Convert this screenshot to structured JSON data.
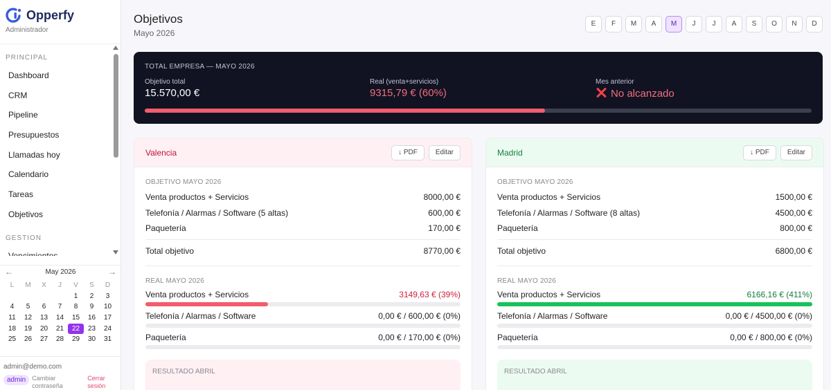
{
  "brand": {
    "name": "Opperfy",
    "role": "Administrador"
  },
  "nav": {
    "sections": [
      {
        "title": "PRINCIPAL",
        "items": [
          "Dashboard",
          "CRM",
          "Pipeline",
          "Presupuestos",
          "Llamadas hoy",
          "Calendario",
          "Tareas",
          "Objetivos"
        ]
      },
      {
        "title": "GESTION",
        "items": [
          "Vencimientos"
        ]
      }
    ]
  },
  "calendar": {
    "month": "May 2026",
    "prev": "←",
    "next": "→",
    "dow": [
      "L",
      "M",
      "X",
      "J",
      "V",
      "S",
      "D"
    ],
    "today": "22",
    "weeks": [
      [
        "",
        "",
        "",
        "",
        "1",
        "2",
        "3"
      ],
      [
        "4",
        "5",
        "6",
        "7",
        "8",
        "9",
        "10"
      ],
      [
        "11",
        "12",
        "13",
        "14",
        "15",
        "16",
        "17"
      ],
      [
        "18",
        "19",
        "20",
        "21",
        "22",
        "23",
        "24"
      ],
      [
        "25",
        "26",
        "27",
        "28",
        "29",
        "30",
        "31"
      ]
    ]
  },
  "user": {
    "email": "admin@demo.com",
    "badge": "admin",
    "change_password": "Cambiar contraseña",
    "logout": "Cerrar sesión"
  },
  "header": {
    "title": "Objetivos",
    "subtitle": "Mayo 2026"
  },
  "months": [
    "E",
    "F",
    "M",
    "A",
    "M",
    "J",
    "J",
    "A",
    "S",
    "O",
    "N",
    "D"
  ],
  "active_month_index": 4,
  "company": {
    "title": "TOTAL EMPRESA — MAYO 2026",
    "objective_label": "Objetivo total",
    "objective_value": "15.570,00 €",
    "real_label": "Real (venta+servicios)",
    "real_value": "9315,79 € (60%)",
    "prev_label": "Mes anterior",
    "prev_value": "No alcanzado",
    "progress": 0.6
  },
  "buttons": {
    "pdf": "↓ PDF",
    "edit": "Editar"
  },
  "cards": [
    {
      "name": "Valencia",
      "objective_title": "OBJETIVO MAYO 2026",
      "objectives": [
        {
          "label": "Venta productos + Servicios",
          "value": "8000,00 €"
        },
        {
          "label": "Telefonía / Alarmas / Software (5 altas)",
          "value": "600,00 €"
        },
        {
          "label": "Paquetería",
          "value": "170,00 €"
        }
      ],
      "total_label": "Total objetivo",
      "total_value": "8770,00 €",
      "real_title": "REAL MAYO 2026",
      "real": [
        {
          "label": "Venta productos + Servicios",
          "value": "3149,63 € (39%)",
          "progress": 0.39,
          "color": "#f25c6c",
          "value_class": "c-red"
        },
        {
          "label": "Telefonía / Alarmas / Software",
          "value": "0,00 € / 600,00 € (0%)",
          "progress": 0,
          "color": "#f25c6c",
          "value_class": ""
        },
        {
          "label": "Paquetería",
          "value": "0,00 € / 170,00 € (0%)",
          "progress": 0,
          "color": "#f25c6c",
          "value_class": ""
        }
      ],
      "result_title": "RESULTADO ABRIL"
    },
    {
      "name": "Madrid",
      "objective_title": "OBJETIVO MAYO 2026",
      "objectives": [
        {
          "label": "Venta productos + Servicios",
          "value": "1500,00 €"
        },
        {
          "label": "Telefonía / Alarmas / Software (8 altas)",
          "value": "4500,00 €"
        },
        {
          "label": "Paquetería",
          "value": "800,00 €"
        }
      ],
      "total_label": "Total objetivo",
      "total_value": "6800,00 €",
      "real_title": "REAL MAYO 2026",
      "real": [
        {
          "label": "Venta productos + Servicios",
          "value": "6166,16 € (411%)",
          "progress": 1,
          "color": "#16c35a",
          "value_class": "c-green"
        },
        {
          "label": "Telefonía / Alarmas / Software",
          "value": "0,00 € / 4500,00 € (0%)",
          "progress": 0,
          "color": "#16c35a",
          "value_class": ""
        },
        {
          "label": "Paquetería",
          "value": "0,00 € / 800,00 € (0%)",
          "progress": 0,
          "color": "#16c35a",
          "value_class": ""
        }
      ],
      "result_title": "RESULTADO ABRIL"
    }
  ]
}
